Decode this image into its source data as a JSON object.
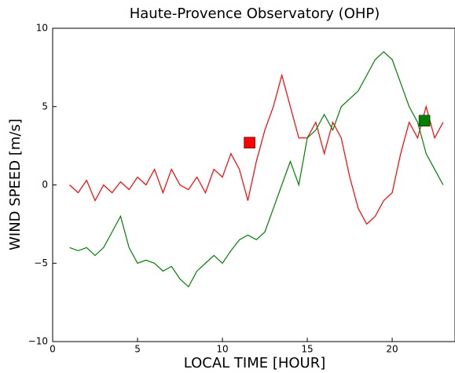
{
  "chart_data": {
    "type": "line",
    "title": "Haute-Provence Observatory (OHP)",
    "x_label": "LOCAL TIME [HOUR]",
    "y_label": "WIND SPEED [m/s]",
    "x": [
      1,
      1.5,
      2,
      2.5,
      3,
      3.5,
      4,
      4.5,
      5,
      5.5,
      6,
      6.5,
      7,
      7.5,
      8,
      8.5,
      9,
      9.5,
      10,
      10.5,
      11,
      11.5,
      12,
      12.5,
      13,
      13.5,
      14,
      14.5,
      15,
      15.5,
      16,
      16.5,
      17,
      17.5,
      18,
      18.5,
      19,
      19.5,
      20,
      20.5,
      21,
      21.5,
      22,
      22.5,
      23
    ],
    "series": [
      {
        "color": "#ff0000",
        "values": [
          0,
          -0.5,
          0.3,
          -1,
          0,
          -0.5,
          0.2,
          -0.3,
          0.5,
          0,
          1,
          -0.5,
          1,
          0,
          -0.3,
          0.5,
          -0.5,
          1,
          0.5,
          2,
          1,
          -1,
          1.5,
          3.5,
          5,
          7,
          5,
          3,
          3,
          4,
          2,
          4,
          3,
          0.5,
          -1.5,
          -2.5,
          -2,
          -1,
          -0.5,
          2,
          4,
          3,
          5,
          3,
          4
        ]
      },
      {
        "color": "#008000",
        "values": [
          -4,
          -4.2,
          -4,
          -4.5,
          -4,
          -3,
          -2,
          -4,
          -5,
          -4.8,
          -5,
          -5.5,
          -5.2,
          -6,
          -6.5,
          -5.5,
          -5,
          -4.5,
          -5,
          -4.2,
          -3.5,
          -3.2,
          -3.5,
          -3,
          -1.5,
          0,
          1.5,
          0,
          3,
          3.5,
          4.5,
          3.5,
          5,
          5.5,
          6,
          7,
          8,
          8.5,
          8,
          6.5,
          5,
          4,
          2,
          1,
          0
        ]
      }
    ],
    "markers": [
      {
        "x": 11.6,
        "y": 2.7,
        "color": "#ff0000"
      },
      {
        "x": 21.9,
        "y": 4.1,
        "color": "#008000"
      }
    ],
    "xlim": [
      0,
      23.7
    ],
    "ylim": [
      -10,
      10
    ],
    "xticks": [
      0,
      5,
      10,
      15,
      20
    ],
    "yticks": [
      {
        "value": -10,
        "label": "−10"
      },
      {
        "value": -5,
        "label": "−5"
      },
      0,
      5,
      10
    ]
  }
}
